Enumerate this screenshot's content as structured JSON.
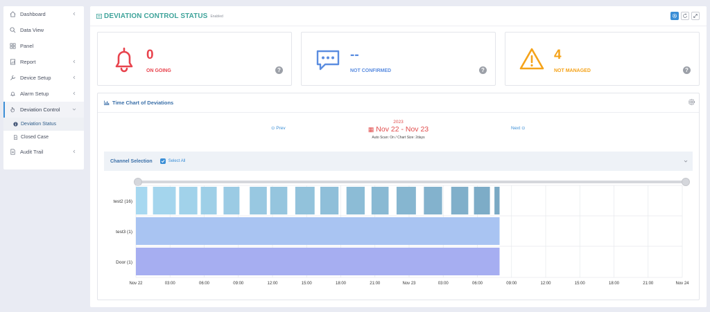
{
  "sidebar": {
    "items": [
      {
        "label": "Dashboard",
        "icon": "home-icon",
        "chevron": true
      },
      {
        "label": "Data View",
        "icon": "search-icon",
        "chevron": false
      },
      {
        "label": "Panel",
        "icon": "grid-icon",
        "chevron": false
      },
      {
        "label": "Report",
        "icon": "report-icon",
        "chevron": true
      },
      {
        "label": "Device Setup",
        "icon": "wrench-icon",
        "chevron": true
      },
      {
        "label": "Alarm Setup",
        "icon": "bell-icon",
        "chevron": true
      },
      {
        "label": "Deviation Control",
        "icon": "hand-icon",
        "chevron": true,
        "expanded": true
      },
      {
        "label": "Audit Trail",
        "icon": "document-icon",
        "chevron": true
      }
    ],
    "subitems": [
      {
        "label": "Deviation Status",
        "icon": "info-icon",
        "current": true
      },
      {
        "label": "Closed Case",
        "icon": "document-icon",
        "current": false
      }
    ]
  },
  "header": {
    "title": "DEVIATION CONTROL STATUS",
    "subtitle": "Enabled"
  },
  "status": [
    {
      "value": "0",
      "label": "ON GOING",
      "color": "#e8434d",
      "icon": "bell-icon"
    },
    {
      "value": "--",
      "label": "NOT CONFIRMED",
      "color": "#5b8de0",
      "icon": "chat-icon"
    },
    {
      "value": "4",
      "label": "NOT MANAGED",
      "color": "#f5a31a",
      "icon": "warning-icon"
    }
  ],
  "chart_card": {
    "title": "Time Chart of Deviations",
    "prev": "Prev",
    "next": "Next",
    "year": "2023",
    "range": "Nov 22  - Nov 23",
    "scan": "Auto Scan: On / Chart Size: 2days"
  },
  "channel_selection": {
    "label": "Channel Selection",
    "select_all": "Select All",
    "checked": true
  },
  "chart_data": {
    "type": "timeline",
    "x_ticks": [
      "Nov 22",
      "03:00",
      "06:00",
      "09:00",
      "12:00",
      "15:00",
      "18:00",
      "21:00",
      "Nov 23",
      "03:00",
      "06:00",
      "09:00",
      "12:00",
      "15:00",
      "18:00",
      "21:00",
      "Nov 24"
    ],
    "x_range_hours": [
      0,
      48
    ],
    "rows": [
      {
        "label": "test2 (16)",
        "color_start": "#a7d8f0",
        "color_end": "#7aa9c4",
        "segments": [
          [
            0.0,
            1.0
          ],
          [
            1.5,
            3.5
          ],
          [
            3.8,
            5.4
          ],
          [
            5.7,
            7.1
          ],
          [
            7.7,
            9.1
          ],
          [
            10.0,
            11.5
          ],
          [
            11.8,
            13.3
          ],
          [
            14.0,
            15.7
          ],
          [
            16.2,
            17.8
          ],
          [
            18.5,
            20.1
          ],
          [
            20.7,
            22.2
          ],
          [
            22.9,
            24.6
          ],
          [
            25.3,
            26.9
          ],
          [
            27.7,
            29.2
          ],
          [
            29.7,
            31.1
          ],
          [
            31.5,
            31.95
          ]
        ]
      },
      {
        "label": "test3 (1)",
        "color": "#a9c4f2",
        "segments": [
          [
            0.0,
            31.95
          ]
        ]
      },
      {
        "label": "Door (1)",
        "color": "#a6aef1",
        "segments": [
          [
            0.0,
            31.95
          ]
        ]
      }
    ]
  }
}
